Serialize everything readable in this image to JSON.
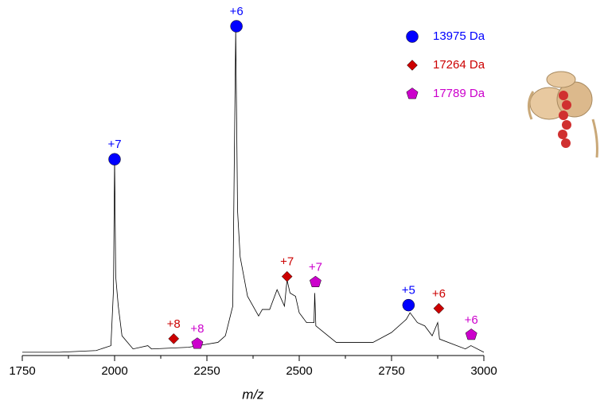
{
  "chart_data": {
    "type": "line",
    "xlabel": "m/z",
    "xlim": [
      1750,
      3000
    ],
    "xticks": [
      1750,
      2000,
      2250,
      2500,
      2750,
      3000
    ],
    "xminorticks": [
      1875,
      2125,
      2375,
      2625,
      2875
    ],
    "ylim": [
      0,
      100
    ],
    "color": "#000000",
    "x": [
      1750,
      1850,
      1950,
      1990,
      1997,
      2000,
      2003,
      2010,
      2020,
      2050,
      2090,
      2100,
      2200,
      2280,
      2300,
      2320,
      2328,
      2333,
      2340,
      2360,
      2390,
      2400,
      2420,
      2440,
      2460,
      2467,
      2475,
      2490,
      2500,
      2520,
      2540,
      2542,
      2545,
      2600,
      2700,
      2750,
      2790,
      2800,
      2820,
      2840,
      2860,
      2875,
      2880,
      2950,
      2965,
      3000
    ],
    "values": [
      1,
      1,
      1.5,
      3,
      20,
      60,
      24,
      15,
      6,
      2,
      3,
      2,
      2.5,
      4,
      6,
      15,
      99,
      44,
      30,
      18,
      12,
      14,
      14,
      20,
      15,
      23,
      19,
      18,
      13,
      10,
      10,
      19,
      9,
      4,
      4,
      7,
      11,
      13,
      10,
      9,
      6,
      10,
      5,
      2,
      3,
      1
    ],
    "series": [
      {
        "name": "13975 Da",
        "color": "#0000ff",
        "marker": "circle",
        "x": [
          2000,
          2330,
          2796
        ],
        "values": [
          59.6,
          100,
          15.3
        ],
        "labels": [
          "+7",
          "+6",
          "+5"
        ]
      },
      {
        "name": "17264 Da",
        "color": "#cc0000",
        "marker": "diamond",
        "x": [
          2160,
          2467,
          2878
        ],
        "values": [
          5.1,
          24,
          14.3
        ],
        "labels": [
          "+8",
          "+7",
          "+6"
        ]
      },
      {
        "name": "17789 Da",
        "color": "#cc00cc",
        "marker": "pentagon",
        "x": [
          2224,
          2544,
          2966
        ],
        "values": [
          3.6,
          22.3,
          6.3
        ],
        "labels": [
          "+8",
          "+7",
          "+6"
        ]
      }
    ]
  }
}
